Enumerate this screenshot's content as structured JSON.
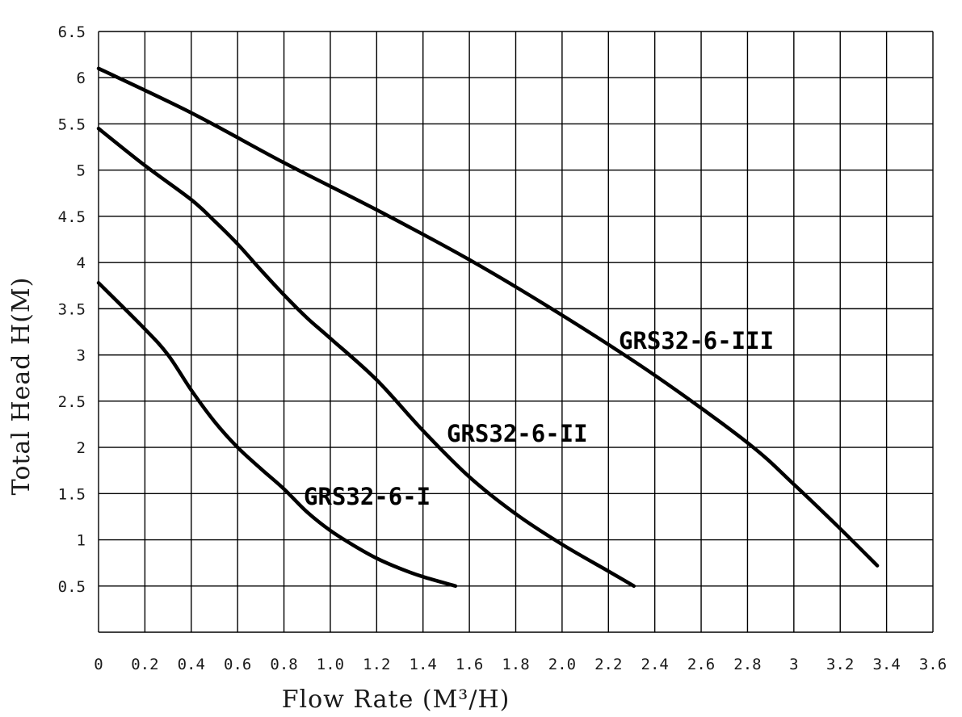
{
  "chart_data": {
    "type": "line",
    "title": "",
    "xlabel": "Flow Rate (M³/H)",
    "ylabel": "Total Head H(M)",
    "xlim": [
      0,
      3.6
    ],
    "ylim": [
      0,
      6.5
    ],
    "grid": true,
    "legend": "none",
    "x_tick_labels": [
      "0",
      "0.2",
      "0.4",
      "0.6",
      "0.8",
      "1.0",
      "1.2",
      "1.4",
      "1.6",
      "1.8",
      "2.0",
      "2.2",
      "2.4",
      "2.6",
      "2.8",
      "3",
      "3.2",
      "3.4",
      "3.6"
    ],
    "y_tick_labels": [
      "0.5",
      "1",
      "1.5",
      "2",
      "2.5",
      "3",
      "3.5",
      "4",
      "4.5",
      "5",
      "5.5",
      "6",
      "6.5"
    ],
    "series": [
      {
        "name": "GRS32-6-I",
        "x": [
          0,
          0.2,
          0.3,
          0.4,
          0.5,
          0.6,
          0.7,
          0.8,
          0.9,
          1.0,
          1.1,
          1.2,
          1.3,
          1.4,
          1.54
        ],
        "y": [
          3.78,
          3.28,
          3.0,
          2.62,
          2.28,
          2.0,
          1.77,
          1.55,
          1.3,
          1.1,
          0.94,
          0.8,
          0.69,
          0.6,
          0.5
        ]
      },
      {
        "name": "GRS32-6-II",
        "x": [
          0,
          0.2,
          0.4,
          0.5,
          0.6,
          0.7,
          0.8,
          0.9,
          1.0,
          1.2,
          1.4,
          1.6,
          1.8,
          2.0,
          2.2,
          2.31
        ],
        "y": [
          5.45,
          5.05,
          4.68,
          4.45,
          4.2,
          3.92,
          3.65,
          3.4,
          3.18,
          2.73,
          2.18,
          1.68,
          1.28,
          0.95,
          0.66,
          0.5
        ]
      },
      {
        "name": "GRS32-6-III",
        "x": [
          0,
          0.4,
          0.8,
          1.2,
          1.6,
          2.0,
          2.4,
          2.8,
          3.0,
          3.2,
          3.36
        ],
        "y": [
          6.1,
          5.62,
          5.08,
          4.57,
          4.03,
          3.43,
          2.78,
          2.05,
          1.6,
          1.12,
          0.72
        ]
      }
    ],
    "annotations": [
      {
        "text": "GRS32-6-I",
        "series": 0
      },
      {
        "text": "GRS32-6-II",
        "series": 1
      },
      {
        "text": "GRS32-6-III",
        "series": 2
      }
    ]
  }
}
